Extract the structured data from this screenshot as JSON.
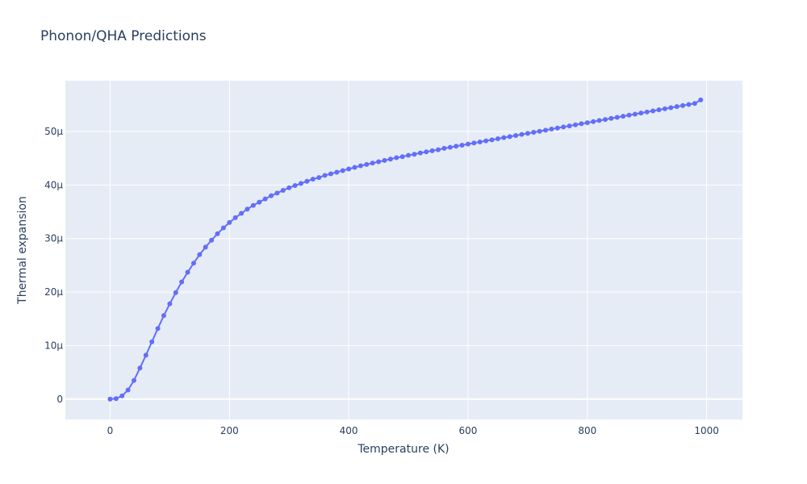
{
  "chart_data": {
    "type": "line",
    "title": "Phonon/QHA Predictions",
    "xlabel": "Temperature (K)",
    "ylabel": "Thermal expansion",
    "xlim": [
      -75,
      1060
    ],
    "ylim": [
      -3.8e-06,
      5.95e-05
    ],
    "x_ticks": [
      0,
      200,
      400,
      600,
      800,
      1000
    ],
    "x_tick_labels": [
      "0",
      "200",
      "400",
      "600",
      "800",
      "1000"
    ],
    "y_ticks": [
      0,
      1e-05,
      2e-05,
      3e-05,
      4e-05,
      5e-05
    ],
    "y_tick_labels": [
      "0",
      "10μ",
      "20μ",
      "30μ",
      "40μ",
      "50μ"
    ],
    "grid": true,
    "legend": "none",
    "mode": "lines+markers",
    "colors": {
      "series": "#636efa",
      "plot_bg": "#e5ecf6",
      "grid": "#ffffff",
      "text": "#2a3f5f"
    },
    "series": [
      {
        "x": [
          0,
          10,
          20,
          30,
          40,
          50,
          60,
          70,
          80,
          90,
          100,
          110,
          120,
          130,
          140,
          150,
          160,
          170,
          180,
          190,
          200,
          210,
          220,
          230,
          240,
          250,
          260,
          270,
          280,
          290,
          300,
          310,
          320,
          330,
          340,
          350,
          360,
          370,
          380,
          390,
          400,
          410,
          420,
          430,
          440,
          450,
          460,
          470,
          480,
          490,
          500,
          510,
          520,
          530,
          540,
          550,
          560,
          570,
          580,
          590,
          600,
          610,
          620,
          630,
          640,
          650,
          660,
          670,
          680,
          690,
          700,
          710,
          720,
          730,
          740,
          750,
          760,
          770,
          780,
          790,
          800,
          810,
          820,
          830,
          840,
          850,
          860,
          870,
          880,
          890,
          900,
          910,
          920,
          930,
          940,
          950,
          960,
          970,
          980,
          990
        ],
        "values": [
          0,
          1e-07,
          6e-07,
          1.7e-06,
          3.5e-06,
          5.8e-06,
          8.2e-06,
          1.07e-05,
          1.32e-05,
          1.56e-05,
          1.78e-05,
          1.99e-05,
          2.19e-05,
          2.37e-05,
          2.54e-05,
          2.7e-05,
          2.84e-05,
          2.97e-05,
          3.09e-05,
          3.2e-05,
          3.3e-05,
          3.39e-05,
          3.47e-05,
          3.55e-05,
          3.62e-05,
          3.68e-05,
          3.74e-05,
          3.8e-05,
          3.85e-05,
          3.9e-05,
          3.95e-05,
          3.99e-05,
          4.03e-05,
          4.07e-05,
          4.11e-05,
          4.14e-05,
          4.18e-05,
          4.21e-05,
          4.24e-05,
          4.27e-05,
          4.3e-05,
          4.33e-05,
          4.36e-05,
          4.385e-05,
          4.41e-05,
          4.435e-05,
          4.46e-05,
          4.485e-05,
          4.51e-05,
          4.53e-05,
          4.555e-05,
          4.575e-05,
          4.6e-05,
          4.62e-05,
          4.64e-05,
          4.66e-05,
          4.685e-05,
          4.705e-05,
          4.725e-05,
          4.745e-05,
          4.765e-05,
          4.785e-05,
          4.805e-05,
          4.825e-05,
          4.845e-05,
          4.865e-05,
          4.885e-05,
          4.905e-05,
          4.925e-05,
          4.945e-05,
          4.965e-05,
          4.985e-05,
          5.005e-05,
          5.025e-05,
          5.045e-05,
          5.065e-05,
          5.085e-05,
          5.105e-05,
          5.125e-05,
          5.145e-05,
          5.165e-05,
          5.185e-05,
          5.205e-05,
          5.225e-05,
          5.245e-05,
          5.265e-05,
          5.285e-05,
          5.305e-05,
          5.325e-05,
          5.345e-05,
          5.365e-05,
          5.385e-05,
          5.405e-05,
          5.425e-05,
          5.445e-05,
          5.465e-05,
          5.485e-05,
          5.505e-05,
          5.525e-05,
          5.59e-05
        ]
      }
    ]
  }
}
